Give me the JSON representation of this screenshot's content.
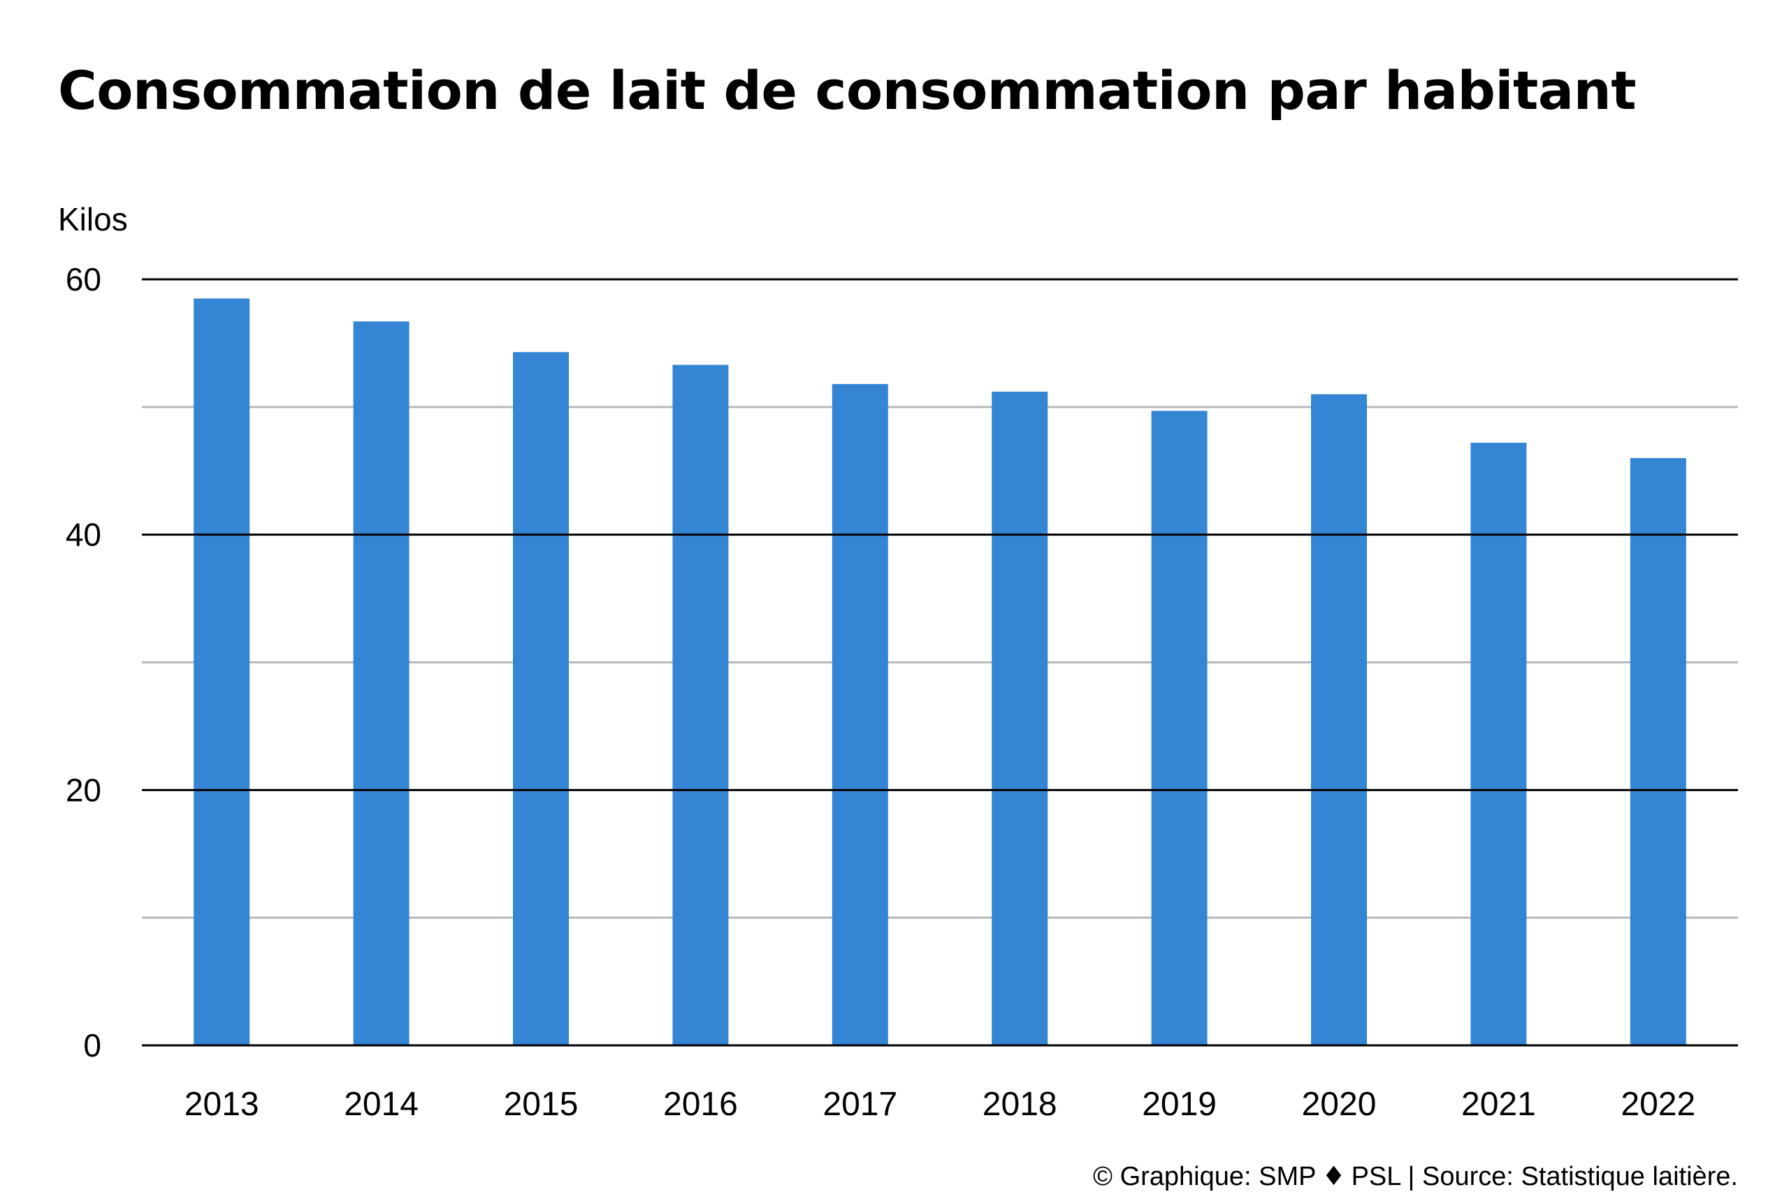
{
  "chart_data": {
    "type": "bar",
    "title": "Consommation de lait de consommation par habitant",
    "unit_label": "Kilos",
    "categories": [
      "2013",
      "2014",
      "2015",
      "2016",
      "2017",
      "2018",
      "2019",
      "2020",
      "2021",
      "2022"
    ],
    "values": [
      58.5,
      56.7,
      54.3,
      53.3,
      51.8,
      51.2,
      49.7,
      51.0,
      47.2,
      46.0
    ],
    "ylim": [
      0,
      60
    ],
    "major_ticks": [
      0,
      20,
      40,
      60
    ],
    "minor_ticks": [
      10,
      30,
      50
    ],
    "grid": true,
    "bar_color": "#3585D5",
    "major_grid_color": "#000000",
    "minor_grid_color": "#B8B8B8"
  },
  "credit": {
    "graphic": "© Graphique: SMP",
    "separator_icon": "diamond-icon",
    "source": "PSL | Source: Statistique laitière."
  }
}
